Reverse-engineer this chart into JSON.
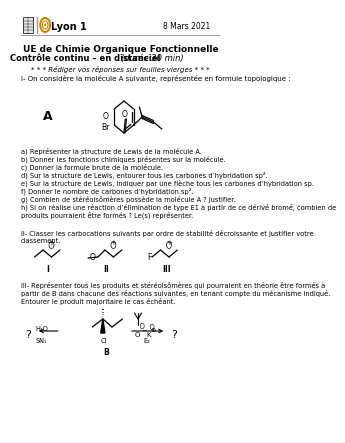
{
  "title_line1": "UE de Chimie Organique Fonctionnelle",
  "title_line2_bold": "Contrôle continu – en distanciel",
  "title_line2_italic": "(durée 30 min)",
  "date": "8 Mars 2021",
  "header_univ": "Lyon 1",
  "instruction": "* * * Rédiger vos réponses sur feuilles vierges * * *",
  "section1": "I- On considère la molécule A suivante, représentée en formule topologique :",
  "questions": [
    "a) Représenter la structure de Lewis de la molécule A.",
    "b) Donner les fonctions chimiques présentes sur la molécule.",
    "c) Donner la formule brute de la molécule.",
    "d) Sur la structure de Lewis, entourer tous les carbones d’hybridation sp².",
    "e) Sur la structure de Lewis, indiquer par une flèche tous les carbones d’hybridation sp.",
    "f) Donner le nombre de carbones d’hybridation sp².",
    "g) Combien de stéréoisômères possède la molécule A ? Justifier.",
    "h) Si on réalise une réaction d’élimination de type E1 à partir de ce dérivé bromé, combien de",
    "produits pourraient être formés ? Le(s) représenter."
  ],
  "section2_line1": "II- Classer les carbocations suivants par ordre de stabilité décroissante et justifier votre",
  "section2_line2": "classement.",
  "section3_line1": "III- Représenter tous les produits et stéréoisômères qui pourraient en théorie être formés à",
  "section3_line2": "partir de B dans chacune des réactions suivantes, en tenant compte du mécanisme indiqué.",
  "section3_line3": "Entourer le produit majoritaire le cas échéant.",
  "bg_color": "#ffffff"
}
